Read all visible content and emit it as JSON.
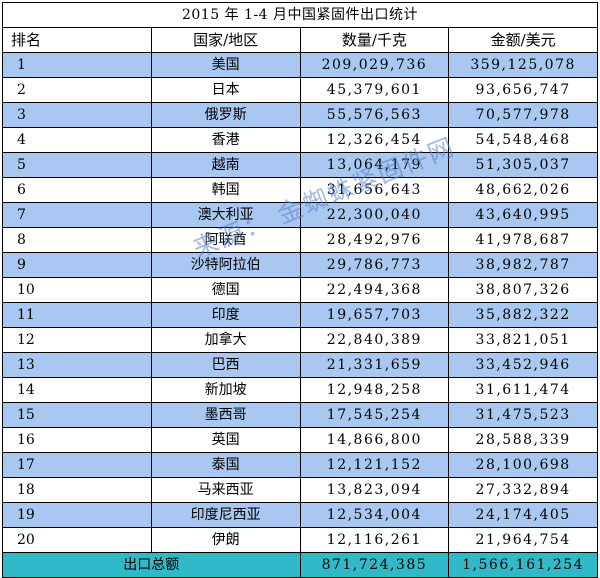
{
  "title": "2015 年 1-4 月中国紧固件出口统计",
  "headers": {
    "rank": "排名",
    "country": "国家/地区",
    "quantity": "数量/千克",
    "amount": "金额/美元"
  },
  "rows": [
    {
      "rank": "1",
      "country": "美国",
      "quantity": "209,029,736",
      "amount": "359,125,078"
    },
    {
      "rank": "2",
      "country": "日本",
      "quantity": "45,379,601",
      "amount": "93,656,747"
    },
    {
      "rank": "3",
      "country": "俄罗斯",
      "quantity": "55,576,563",
      "amount": "70,577,978"
    },
    {
      "rank": "4",
      "country": "香港",
      "quantity": "12,326,454",
      "amount": "54,548,468"
    },
    {
      "rank": "5",
      "country": "越南",
      "quantity": "13,064,179",
      "amount": "51,305,037"
    },
    {
      "rank": "6",
      "country": "韩国",
      "quantity": "31,656,643",
      "amount": "48,662,026"
    },
    {
      "rank": "7",
      "country": "澳大利亚",
      "quantity": "22,300,040",
      "amount": "43,640,995"
    },
    {
      "rank": "8",
      "country": "阿联酋",
      "quantity": "28,492,976",
      "amount": "41,978,687"
    },
    {
      "rank": "9",
      "country": "沙特阿拉伯",
      "quantity": "29,786,773",
      "amount": "38,982,787"
    },
    {
      "rank": "10",
      "country": "德国",
      "quantity": "22,494,368",
      "amount": "38,807,326"
    },
    {
      "rank": "11",
      "country": "印度",
      "quantity": "19,657,703",
      "amount": "35,882,322"
    },
    {
      "rank": "12",
      "country": "加拿大",
      "quantity": "22,840,389",
      "amount": "33,821,051"
    },
    {
      "rank": "13",
      "country": "巴西",
      "quantity": "21,331,659",
      "amount": "33,452,946"
    },
    {
      "rank": "14",
      "country": "新加坡",
      "quantity": "12,948,258",
      "amount": "31,611,474"
    },
    {
      "rank": "15",
      "country": "墨西哥",
      "quantity": "17,545,254",
      "amount": "31,475,523"
    },
    {
      "rank": "16",
      "country": "英国",
      "quantity": "14,866,800",
      "amount": "28,588,339"
    },
    {
      "rank": "17",
      "country": "泰国",
      "quantity": "12,121,152",
      "amount": "28,100,698"
    },
    {
      "rank": "18",
      "country": "马来西亚",
      "quantity": "13,823,094",
      "amount": "27,332,894"
    },
    {
      "rank": "19",
      "country": "印度尼西亚",
      "quantity": "12,534,004",
      "amount": "24,174,405"
    },
    {
      "rank": "20",
      "country": "伊朗",
      "quantity": "12,116,261",
      "amount": "21,964,754"
    }
  ],
  "total": {
    "label": "出口总额",
    "quantity": "871,724,385",
    "amount": "1,566,161,254"
  },
  "watermark": "来源：  金蜘蛛紧固件网",
  "colors": {
    "row_blue": "#a9c8f1",
    "row_white": "#ffffff",
    "total_row": "#30b9c8",
    "watermark": "#5082d2"
  }
}
